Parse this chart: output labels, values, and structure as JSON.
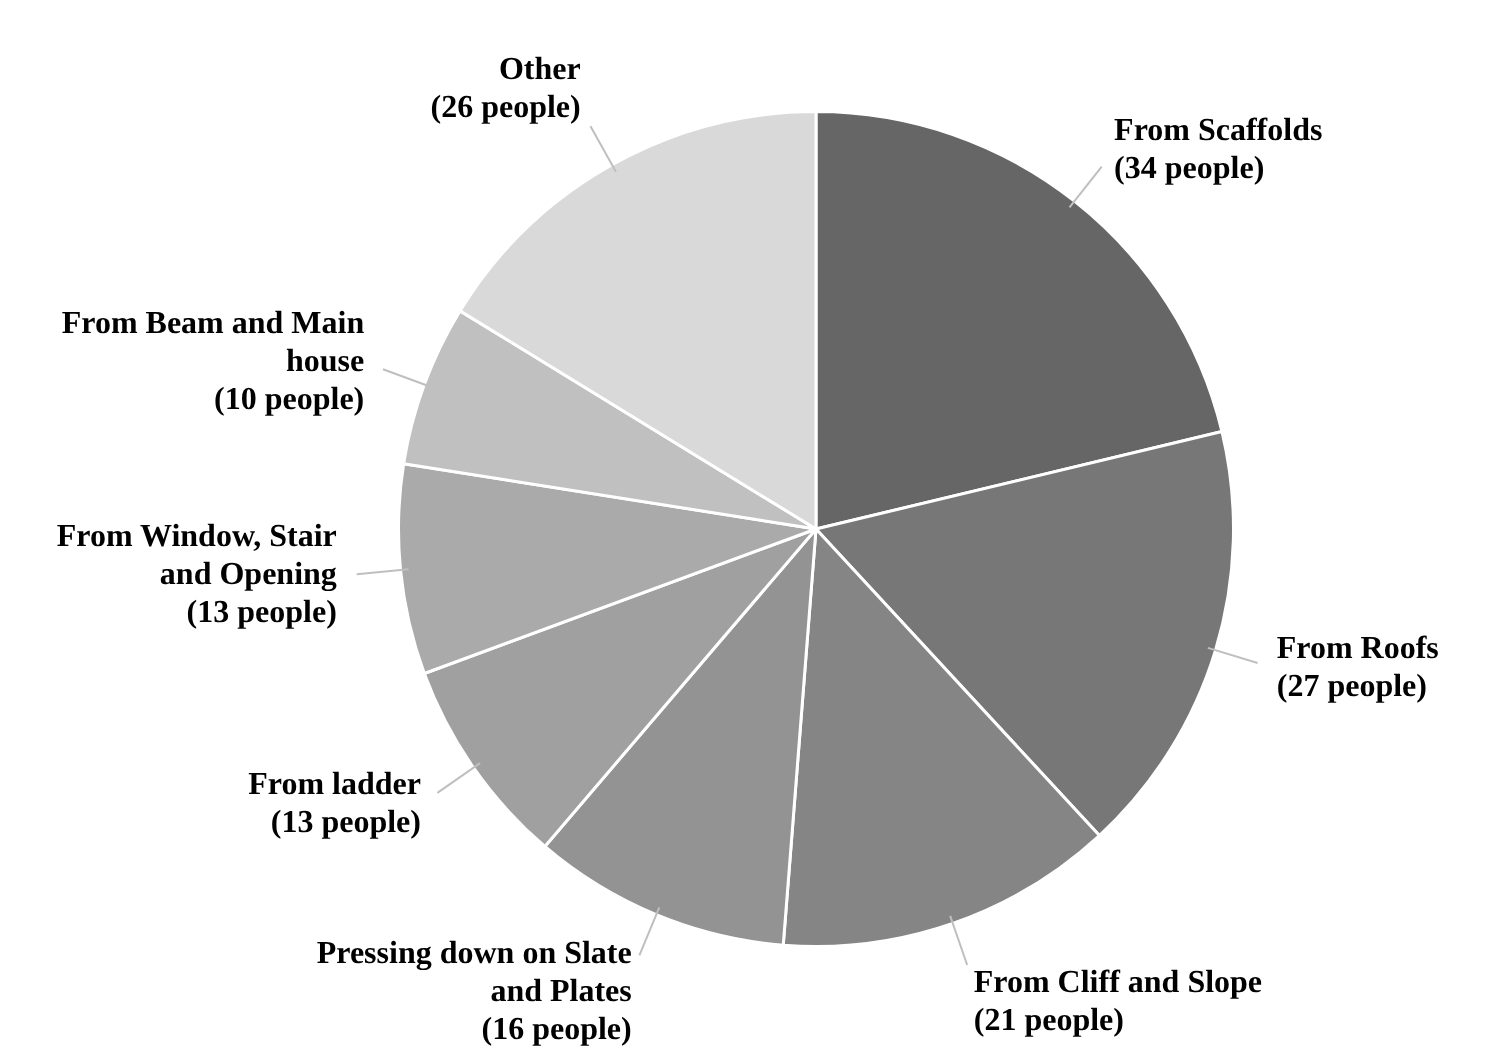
{
  "chart_data": {
    "type": "pie",
    "categories": [
      "From Scaffolds",
      "From Roofs",
      "From Cliff and Slope",
      "Pressing down on Slate and Plates",
      "From ladder",
      "From Window, Stair and Opening",
      "From Beam and Main house",
      "Other"
    ],
    "values": [
      34,
      27,
      21,
      16,
      13,
      13,
      10,
      26
    ],
    "value_labels": [
      "(34 people)",
      "(27 people)",
      "(21 people)",
      "(16 people)",
      "(13 people)",
      "(13 people)",
      "(10 people)",
      "(26 people)"
    ],
    "colors": [
      "#666666",
      "#777777",
      "#858585",
      "#939393",
      "#a0a0a0",
      "#aaaaaa",
      "#c0c0c0",
      "#d9d9d9"
    ]
  }
}
